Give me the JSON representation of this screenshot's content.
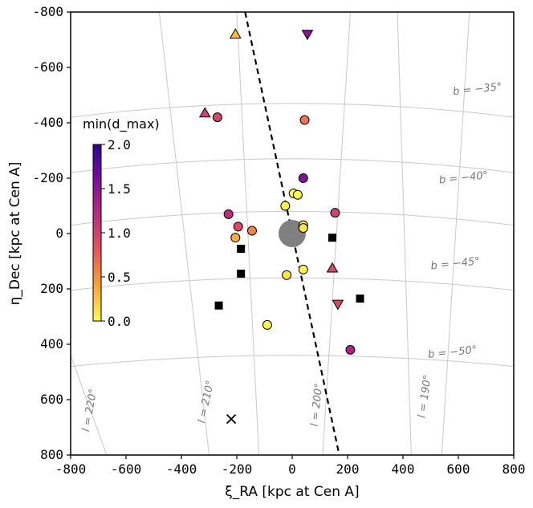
{
  "chart_data": {
    "type": "scatter",
    "title": "",
    "xlabel": "ξ_RA [kpc at Cen A]",
    "ylabel": "η_Dec [kpc at Cen A]",
    "xlim": [
      -800,
      800
    ],
    "ylim": [
      -800,
      800
    ],
    "y_inverted": true,
    "xticks": [
      "-800",
      "-600",
      "-400",
      "-200",
      "0",
      "200",
      "400",
      "600",
      "800"
    ],
    "yticks": [
      "-800",
      "-600",
      "-400",
      "-200",
      "0",
      "200",
      "400",
      "600",
      "800"
    ],
    "colorbar": {
      "title": "min(d_max)",
      "range": [
        0.0,
        2.0
      ],
      "ticks": [
        "2.0",
        "1.5",
        "1.0",
        "0.5",
        "0.0"
      ],
      "colors": [
        "#fcfd54",
        "#fca236",
        "#e5575c",
        "#b6307b",
        "#7a0e9d",
        "#2a0593"
      ]
    },
    "grid_labels": {
      "latitude": [
        "b = −35°",
        "b = −40°",
        "b = −45°",
        "b = −50°"
      ],
      "longitude": [
        "l = 220°",
        "l = 210°",
        "l = 200°",
        "l = 190°"
      ]
    },
    "center_galaxy": {
      "x": 0,
      "y": 0,
      "label": "Cen A"
    },
    "dashed_line": [
      {
        "x": -170,
        "y": -800
      },
      {
        "x": 170,
        "y": 800
      }
    ],
    "circles": [
      {
        "x": -270,
        "y": -420,
        "c": 0.95
      },
      {
        "x": 45,
        "y": -410,
        "c": 0.65
      },
      {
        "x": 40,
        "y": -200,
        "c": 1.55
      },
      {
        "x": 5,
        "y": -145,
        "c": 0.0
      },
      {
        "x": 20,
        "y": -140,
        "c": 0.0
      },
      {
        "x": -25,
        "y": -100,
        "c": 0.05
      },
      {
        "x": -230,
        "y": -70,
        "c": 1.2
      },
      {
        "x": 155,
        "y": -75,
        "c": 1.0
      },
      {
        "x": 40,
        "y": -30,
        "c": 0.1
      },
      {
        "x": -195,
        "y": -25,
        "c": 0.9
      },
      {
        "x": 40,
        "y": -20,
        "c": 0.1
      },
      {
        "x": -145,
        "y": -10,
        "c": 0.55
      },
      {
        "x": -205,
        "y": 15,
        "c": 0.35
      },
      {
        "x": 40,
        "y": 130,
        "c": 0.05
      },
      {
        "x": -20,
        "y": 150,
        "c": 0.1
      },
      {
        "x": -90,
        "y": 330,
        "c": 0.05
      },
      {
        "x": 210,
        "y": 420,
        "c": 1.3
      }
    ],
    "triangles_up": [
      {
        "x": -205,
        "y": -720,
        "c": 0.3
      },
      {
        "x": -315,
        "y": -435,
        "c": 1.0
      },
      {
        "x": 145,
        "y": 125,
        "c": 0.95
      }
    ],
    "triangles_down": [
      {
        "x": 55,
        "y": -720,
        "c": 1.5
      },
      {
        "x": 165,
        "y": 255,
        "c": 0.9
      }
    ],
    "squares": [
      {
        "x": 145,
        "y": 15
      },
      {
        "x": -185,
        "y": 55
      },
      {
        "x": -185,
        "y": 145
      },
      {
        "x": 245,
        "y": 235
      },
      {
        "x": -265,
        "y": 260
      }
    ],
    "crosses": [
      {
        "x": -220,
        "y": 670
      }
    ]
  }
}
